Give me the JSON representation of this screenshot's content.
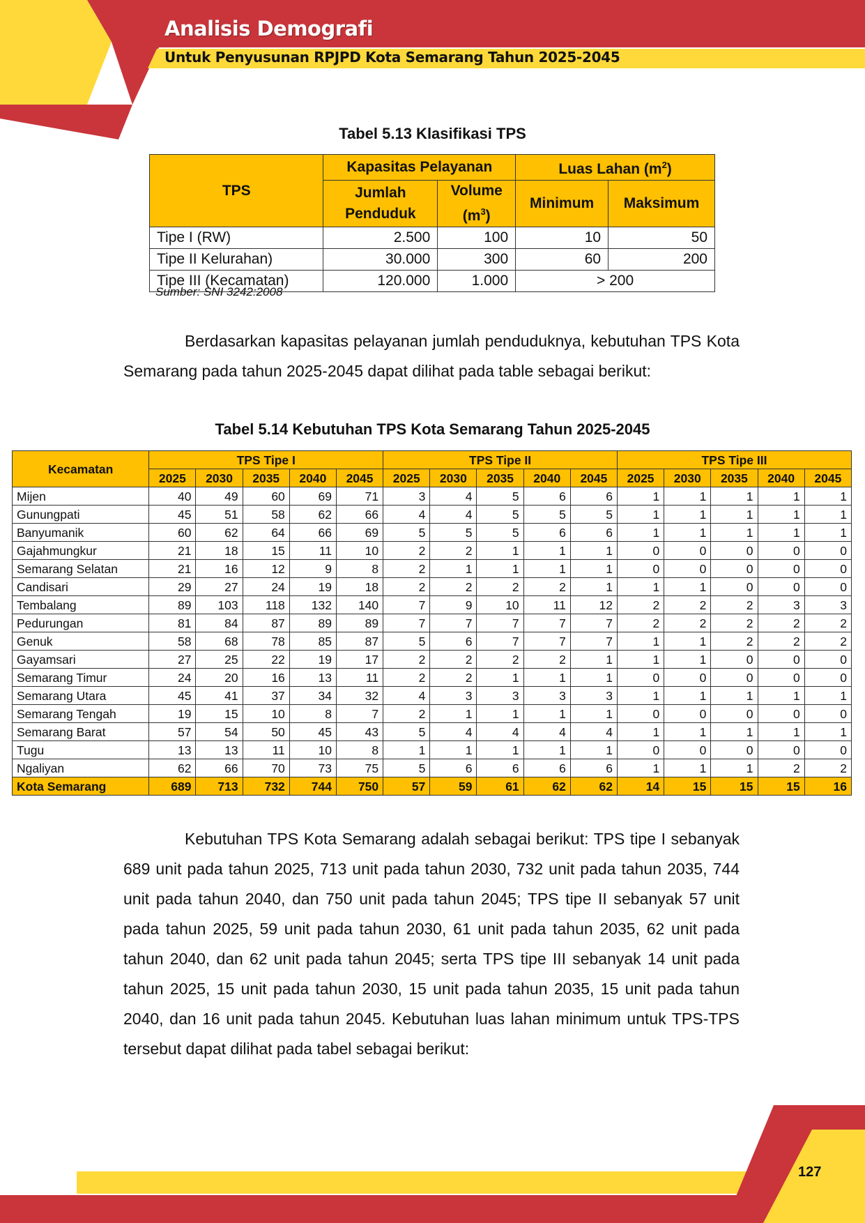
{
  "header": {
    "title": "Analisis Demografi",
    "subtitle": "Untuk Penyusunan RPJPD Kota Semarang Tahun 2025-2045"
  },
  "colors": {
    "red": "#c9353a",
    "yellow": "#fec000",
    "yellow_light": "#ffd93a"
  },
  "table1": {
    "caption": "Tabel 5.13 Klasifikasi TPS",
    "h_tps": "TPS",
    "h_kapasitas": "Kapasitas Pelayanan",
    "h_luas": "Luas Lahan (m",
    "h_luas_sup": "2",
    "h_jumlah": "Jumlah Penduduk",
    "h_volume": "Volume (m",
    "h_volume_sup": "3",
    "h_min": "Minimum",
    "h_max": "Maksimum",
    "rows": [
      [
        "Tipe I (RW)",
        "2.500",
        "100",
        "10",
        "50"
      ],
      [
        "Tipe II Kelurahan)",
        "30.000",
        "300",
        "60",
        "200"
      ],
      [
        "Tipe III (Kecamatan)",
        "120.000",
        "1.000",
        "> 200"
      ]
    ],
    "source": "Sumber: SNI 3242:2008"
  },
  "para1": "Berdasarkan kapasitas pelayanan jumlah penduduknya, kebutuhan TPS Kota Semarang pada tahun 2025-2045 dapat dilihat pada table sebagai berikut:",
  "table2": {
    "caption": "Tabel 5.14 Kebutuhan TPS Kota Semarang Tahun 2025-2045",
    "h_kecamatan": "Kecamatan",
    "groups": [
      "TPS Tipe I",
      "TPS Tipe II",
      "TPS Tipe III"
    ],
    "years": [
      "2025",
      "2030",
      "2035",
      "2040",
      "2045"
    ],
    "rows": [
      [
        "Mijen",
        "40",
        "49",
        "60",
        "69",
        "71",
        "3",
        "4",
        "5",
        "6",
        "6",
        "1",
        "1",
        "1",
        "1",
        "1"
      ],
      [
        "Gunungpati",
        "45",
        "51",
        "58",
        "62",
        "66",
        "4",
        "4",
        "5",
        "5",
        "5",
        "1",
        "1",
        "1",
        "1",
        "1"
      ],
      [
        "Banyumanik",
        "60",
        "62",
        "64",
        "66",
        "69",
        "5",
        "5",
        "5",
        "6",
        "6",
        "1",
        "1",
        "1",
        "1",
        "1"
      ],
      [
        "Gajahmungkur",
        "21",
        "18",
        "15",
        "11",
        "10",
        "2",
        "2",
        "1",
        "1",
        "1",
        "0",
        "0",
        "0",
        "0",
        "0"
      ],
      [
        "Semarang Selatan",
        "21",
        "16",
        "12",
        "9",
        "8",
        "2",
        "1",
        "1",
        "1",
        "1",
        "0",
        "0",
        "0",
        "0",
        "0"
      ],
      [
        "Candisari",
        "29",
        "27",
        "24",
        "19",
        "18",
        "2",
        "2",
        "2",
        "2",
        "1",
        "1",
        "1",
        "0",
        "0",
        "0"
      ],
      [
        "Tembalang",
        "89",
        "103",
        "118",
        "132",
        "140",
        "7",
        "9",
        "10",
        "11",
        "12",
        "2",
        "2",
        "2",
        "3",
        "3"
      ],
      [
        "Pedurungan",
        "81",
        "84",
        "87",
        "89",
        "89",
        "7",
        "7",
        "7",
        "7",
        "7",
        "2",
        "2",
        "2",
        "2",
        "2"
      ],
      [
        "Genuk",
        "58",
        "68",
        "78",
        "85",
        "87",
        "5",
        "6",
        "7",
        "7",
        "7",
        "1",
        "1",
        "2",
        "2",
        "2"
      ],
      [
        "Gayamsari",
        "27",
        "25",
        "22",
        "19",
        "17",
        "2",
        "2",
        "2",
        "2",
        "1",
        "1",
        "1",
        "0",
        "0",
        "0"
      ],
      [
        "Semarang Timur",
        "24",
        "20",
        "16",
        "13",
        "11",
        "2",
        "2",
        "1",
        "1",
        "1",
        "0",
        "0",
        "0",
        "0",
        "0"
      ],
      [
        "Semarang Utara",
        "45",
        "41",
        "37",
        "34",
        "32",
        "4",
        "3",
        "3",
        "3",
        "3",
        "1",
        "1",
        "1",
        "1",
        "1"
      ],
      [
        "Semarang Tengah",
        "19",
        "15",
        "10",
        "8",
        "7",
        "2",
        "1",
        "1",
        "1",
        "1",
        "0",
        "0",
        "0",
        "0",
        "0"
      ],
      [
        "Semarang Barat",
        "57",
        "54",
        "50",
        "45",
        "43",
        "5",
        "4",
        "4",
        "4",
        "4",
        "1",
        "1",
        "1",
        "1",
        "1"
      ],
      [
        "Tugu",
        "13",
        "13",
        "11",
        "10",
        "8",
        "1",
        "1",
        "1",
        "1",
        "1",
        "0",
        "0",
        "0",
        "0",
        "0"
      ],
      [
        "Ngaliyan",
        "62",
        "66",
        "70",
        "73",
        "75",
        "5",
        "6",
        "6",
        "6",
        "6",
        "1",
        "1",
        "1",
        "2",
        "2"
      ]
    ],
    "total": [
      "Kota Semarang",
      "689",
      "713",
      "732",
      "744",
      "750",
      "57",
      "59",
      "61",
      "62",
      "62",
      "14",
      "15",
      "15",
      "15",
      "16"
    ]
  },
  "para2": "Kebutuhan TPS Kota Semarang adalah sebagai berikut: TPS tipe I sebanyak 689 unit pada tahun 2025, 713 unit pada tahun 2030, 732 unit pada tahun 2035, 744 unit pada tahun 2040, dan 750 unit pada tahun 2045; TPS tipe II sebanyak 57 unit pada tahun 2025, 59 unit pada tahun 2030, 61 unit pada tahun 2035, 62 unit pada tahun 2040, dan 62 unit pada tahun 2045; serta TPS tipe III sebanyak 14 unit pada tahun 2025, 15 unit pada tahun 2030, 15 unit pada tahun 2035, 15 unit pada tahun 2040, dan 16 unit pada tahun 2045. Kebutuhan luas lahan minimum untuk TPS-TPS tersebut dapat dilihat pada tabel sebagai berikut:",
  "page_number": "127"
}
